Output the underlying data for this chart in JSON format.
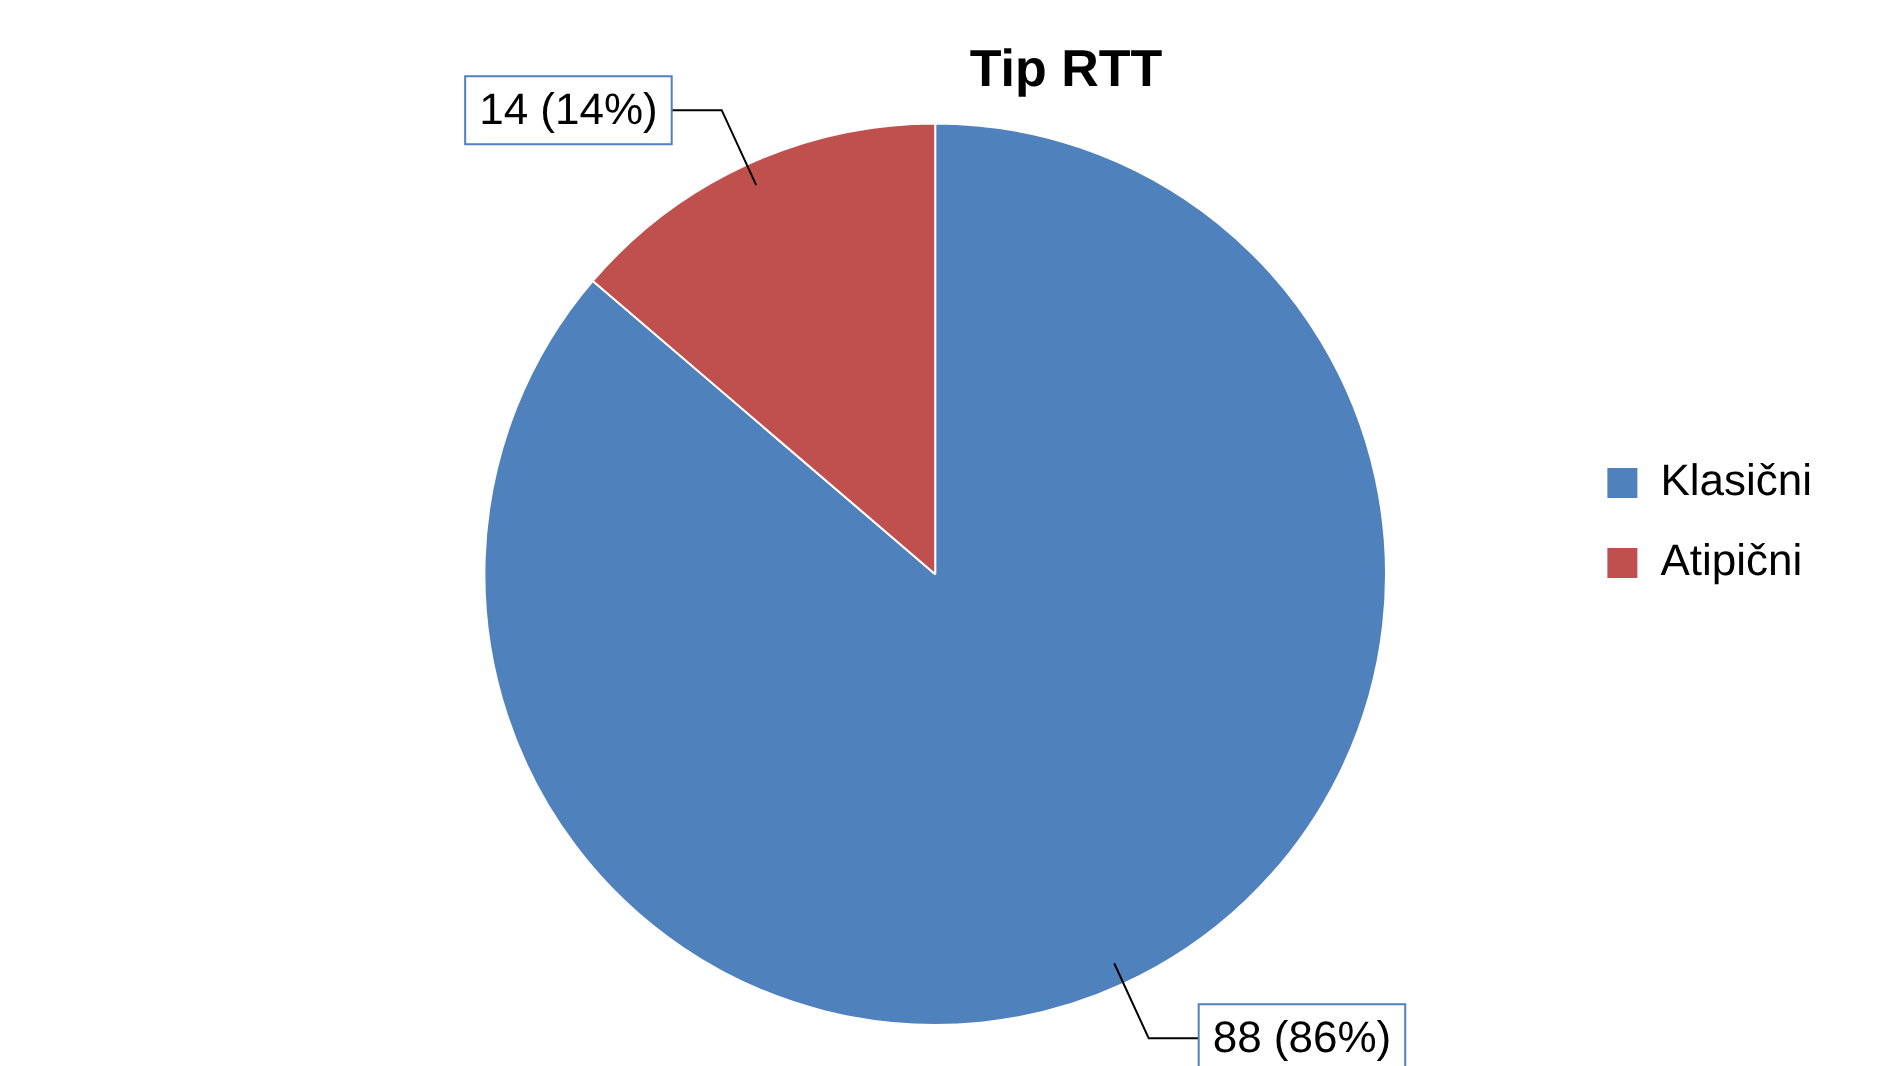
{
  "chart_data": {
    "type": "pie",
    "title": "Tip RTT",
    "categories": [
      "Klasični",
      "Atipični"
    ],
    "values": [
      88,
      14
    ],
    "colors": [
      "#4f81bd",
      "#c0504d"
    ],
    "value_labels": [
      "88 (86%)",
      "14 (14%)"
    ],
    "legend": "right"
  }
}
